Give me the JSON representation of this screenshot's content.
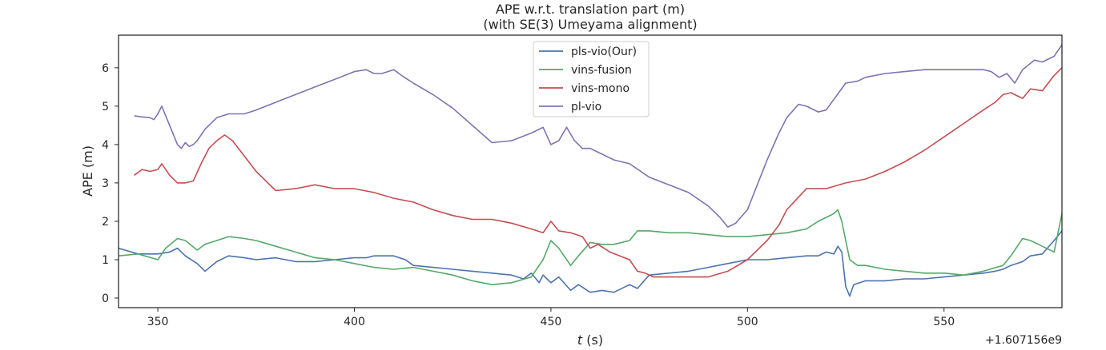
{
  "chart_data": {
    "type": "line",
    "title": "APE w.r.t. translation part (m)",
    "subtitle": "(with SE(3) Umeyama alignment)",
    "xlabel_var": "t",
    "xlabel_unit": "(s)",
    "ylabel": "APE (m)",
    "x_offset_label": "+1.607156e9",
    "xlim": [
      340,
      580
    ],
    "ylim": [
      -0.25,
      6.85
    ],
    "xticks": [
      350,
      400,
      450,
      500,
      550
    ],
    "yticks": [
      0,
      1,
      2,
      3,
      4,
      5,
      6
    ],
    "legend_position": "upper center",
    "series": [
      {
        "name": "pls-vio(Our)",
        "color": "#4c72b0",
        "x": [
          340,
          345,
          350,
          353,
          355,
          357,
          360,
          362,
          365,
          368,
          372,
          375,
          380,
          385,
          390,
          395,
          400,
          403,
          405,
          410,
          413,
          415,
          420,
          425,
          430,
          435,
          440,
          443,
          445,
          447,
          448,
          450,
          452,
          455,
          457,
          460,
          463,
          466,
          470,
          472,
          475,
          480,
          485,
          490,
          495,
          500,
          505,
          510,
          515,
          518,
          520,
          522,
          523,
          524,
          525,
          526,
          527,
          530,
          535,
          540,
          545,
          550,
          555,
          560,
          563,
          565,
          567,
          570,
          572,
          575,
          578,
          580
        ],
        "y": [
          1.3,
          1.15,
          1.15,
          1.2,
          1.3,
          1.1,
          0.9,
          0.7,
          0.95,
          1.1,
          1.05,
          1.0,
          1.05,
          0.95,
          0.95,
          1.0,
          1.05,
          1.05,
          1.1,
          1.1,
          1.0,
          0.85,
          0.8,
          0.75,
          0.7,
          0.65,
          0.6,
          0.5,
          0.65,
          0.4,
          0.6,
          0.4,
          0.55,
          0.2,
          0.35,
          0.15,
          0.2,
          0.15,
          0.35,
          0.25,
          0.6,
          0.65,
          0.7,
          0.8,
          0.9,
          1.0,
          1.0,
          1.05,
          1.1,
          1.1,
          1.2,
          1.15,
          1.35,
          1.2,
          0.3,
          0.05,
          0.35,
          0.45,
          0.45,
          0.5,
          0.5,
          0.55,
          0.6,
          0.65,
          0.7,
          0.75,
          0.85,
          0.95,
          1.1,
          1.15,
          1.5,
          1.75
        ]
      },
      {
        "name": "vins-fusion",
        "color": "#55a868",
        "x": [
          340,
          345,
          350,
          352,
          355,
          357,
          360,
          362,
          365,
          368,
          372,
          375,
          380,
          385,
          390,
          395,
          400,
          405,
          410,
          415,
          420,
          425,
          430,
          435,
          440,
          445,
          448,
          450,
          452,
          455,
          457,
          460,
          463,
          466,
          470,
          472,
          475,
          480,
          485,
          490,
          495,
          500,
          505,
          510,
          515,
          518,
          520,
          522,
          523,
          524,
          525,
          526,
          528,
          530,
          535,
          540,
          545,
          550,
          555,
          560,
          565,
          567,
          570,
          572,
          575,
          578,
          580
        ],
        "y": [
          1.1,
          1.15,
          1.0,
          1.3,
          1.55,
          1.5,
          1.25,
          1.4,
          1.5,
          1.6,
          1.55,
          1.5,
          1.35,
          1.2,
          1.05,
          1.0,
          0.9,
          0.8,
          0.75,
          0.8,
          0.7,
          0.6,
          0.45,
          0.35,
          0.4,
          0.55,
          1.0,
          1.5,
          1.3,
          0.85,
          1.1,
          1.45,
          1.4,
          1.4,
          1.5,
          1.75,
          1.75,
          1.7,
          1.7,
          1.65,
          1.6,
          1.6,
          1.65,
          1.7,
          1.8,
          2.0,
          2.1,
          2.2,
          2.3,
          2.0,
          1.5,
          1.0,
          0.85,
          0.85,
          0.75,
          0.7,
          0.65,
          0.65,
          0.6,
          0.7,
          0.85,
          1.1,
          1.55,
          1.5,
          1.35,
          1.2,
          2.2
        ]
      },
      {
        "name": "vins-mono",
        "color": "#c44e52",
        "x": [
          344,
          346,
          348,
          350,
          351,
          353,
          355,
          357,
          359,
          361,
          363,
          365,
          367,
          369,
          372,
          375,
          378,
          380,
          385,
          390,
          395,
          400,
          405,
          410,
          415,
          420,
          425,
          430,
          435,
          440,
          445,
          448,
          450,
          452,
          455,
          458,
          460,
          462,
          465,
          470,
          472,
          474,
          476,
          480,
          485,
          490,
          495,
          500,
          505,
          508,
          510,
          515,
          520,
          525,
          530,
          535,
          540,
          545,
          550,
          555,
          560,
          563,
          565,
          567,
          570,
          572,
          575,
          578,
          580
        ],
        "y": [
          3.2,
          3.35,
          3.3,
          3.35,
          3.5,
          3.2,
          3.0,
          3.0,
          3.05,
          3.5,
          3.9,
          4.1,
          4.25,
          4.1,
          3.7,
          3.3,
          3.0,
          2.8,
          2.85,
          2.95,
          2.85,
          2.85,
          2.75,
          2.6,
          2.5,
          2.3,
          2.15,
          2.05,
          2.05,
          1.95,
          1.8,
          1.7,
          2.0,
          1.75,
          1.7,
          1.6,
          1.3,
          1.4,
          1.2,
          1.0,
          0.7,
          0.65,
          0.55,
          0.55,
          0.55,
          0.55,
          0.7,
          1.0,
          1.5,
          1.9,
          2.3,
          2.85,
          2.85,
          3.0,
          3.1,
          3.3,
          3.55,
          3.85,
          4.2,
          4.55,
          4.9,
          5.1,
          5.3,
          5.35,
          5.2,
          5.45,
          5.4,
          5.8,
          6.0
        ]
      },
      {
        "name": "pl-vio",
        "color": "#8172b2",
        "x": [
          344,
          346,
          348,
          349,
          350,
          351,
          353,
          355,
          356,
          357,
          358,
          359,
          360,
          362,
          365,
          368,
          372,
          375,
          380,
          385,
          390,
          395,
          400,
          403,
          405,
          407,
          410,
          412,
          415,
          420,
          425,
          430,
          435,
          440,
          445,
          448,
          450,
          452,
          454,
          456,
          458,
          460,
          463,
          466,
          470,
          475,
          480,
          485,
          490,
          493,
          495,
          497,
          500,
          505,
          508,
          510,
          513,
          515,
          518,
          520,
          525,
          528,
          530,
          535,
          540,
          545,
          550,
          555,
          560,
          562,
          564,
          566,
          568,
          570,
          573,
          575,
          578,
          580
        ],
        "y": [
          4.75,
          4.72,
          4.7,
          4.65,
          4.8,
          5.0,
          4.5,
          4.0,
          3.9,
          4.05,
          3.95,
          4.0,
          4.1,
          4.4,
          4.7,
          4.8,
          4.8,
          4.9,
          5.1,
          5.3,
          5.5,
          5.7,
          5.9,
          5.95,
          5.85,
          5.85,
          5.95,
          5.8,
          5.6,
          5.3,
          4.95,
          4.5,
          4.05,
          4.1,
          4.3,
          4.45,
          4.0,
          4.1,
          4.45,
          4.1,
          3.9,
          3.9,
          3.75,
          3.6,
          3.5,
          3.15,
          2.95,
          2.75,
          2.4,
          2.1,
          1.85,
          1.95,
          2.3,
          3.6,
          4.3,
          4.7,
          5.05,
          5.0,
          4.85,
          4.9,
          5.6,
          5.65,
          5.75,
          5.85,
          5.9,
          5.95,
          5.95,
          5.95,
          5.95,
          5.9,
          5.75,
          5.85,
          5.6,
          5.95,
          6.2,
          6.15,
          6.3,
          6.6
        ]
      }
    ]
  }
}
